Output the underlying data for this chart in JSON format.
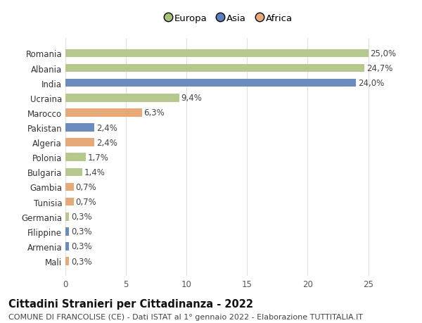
{
  "countries": [
    "Romania",
    "Albania",
    "India",
    "Ucraina",
    "Marocco",
    "Pakistan",
    "Algeria",
    "Polonia",
    "Bulgaria",
    "Gambia",
    "Tunisia",
    "Germania",
    "Filippine",
    "Armenia",
    "Mali"
  ],
  "values": [
    25.0,
    24.7,
    24.0,
    9.4,
    6.3,
    2.4,
    2.4,
    1.7,
    1.4,
    0.7,
    0.7,
    0.3,
    0.3,
    0.3,
    0.3
  ],
  "labels": [
    "25,0%",
    "24,7%",
    "24,0%",
    "9,4%",
    "6,3%",
    "2,4%",
    "2,4%",
    "1,7%",
    "1,4%",
    "0,7%",
    "0,7%",
    "0,3%",
    "0,3%",
    "0,3%",
    "0,3%"
  ],
  "continents": [
    "Europa",
    "Europa",
    "Asia",
    "Europa",
    "Africa",
    "Asia",
    "Africa",
    "Europa",
    "Europa",
    "Africa",
    "Africa",
    "Europa",
    "Asia",
    "Asia",
    "Africa"
  ],
  "colors": {
    "Europa": "#b5c98e",
    "Asia": "#6b8cbf",
    "Africa": "#e8a97a"
  },
  "legend_order": [
    "Europa",
    "Asia",
    "Africa"
  ],
  "legend_colors": {
    "Europa": "#a8c07a",
    "Asia": "#5b7fbb",
    "Africa": "#e8a97a"
  },
  "xlim": [
    0,
    27
  ],
  "xticks": [
    0,
    5,
    10,
    15,
    20,
    25
  ],
  "title": "Cittadini Stranieri per Cittadinanza - 2022",
  "subtitle": "COMUNE DI FRANCOLISE (CE) - Dati ISTAT al 1° gennaio 2022 - Elaborazione TUTTITALIA.IT",
  "bg_color": "#ffffff",
  "grid_color": "#e0e0e0",
  "bar_height": 0.55,
  "label_fontsize": 8.5,
  "tick_fontsize": 8.5,
  "title_fontsize": 10.5,
  "subtitle_fontsize": 8.0
}
